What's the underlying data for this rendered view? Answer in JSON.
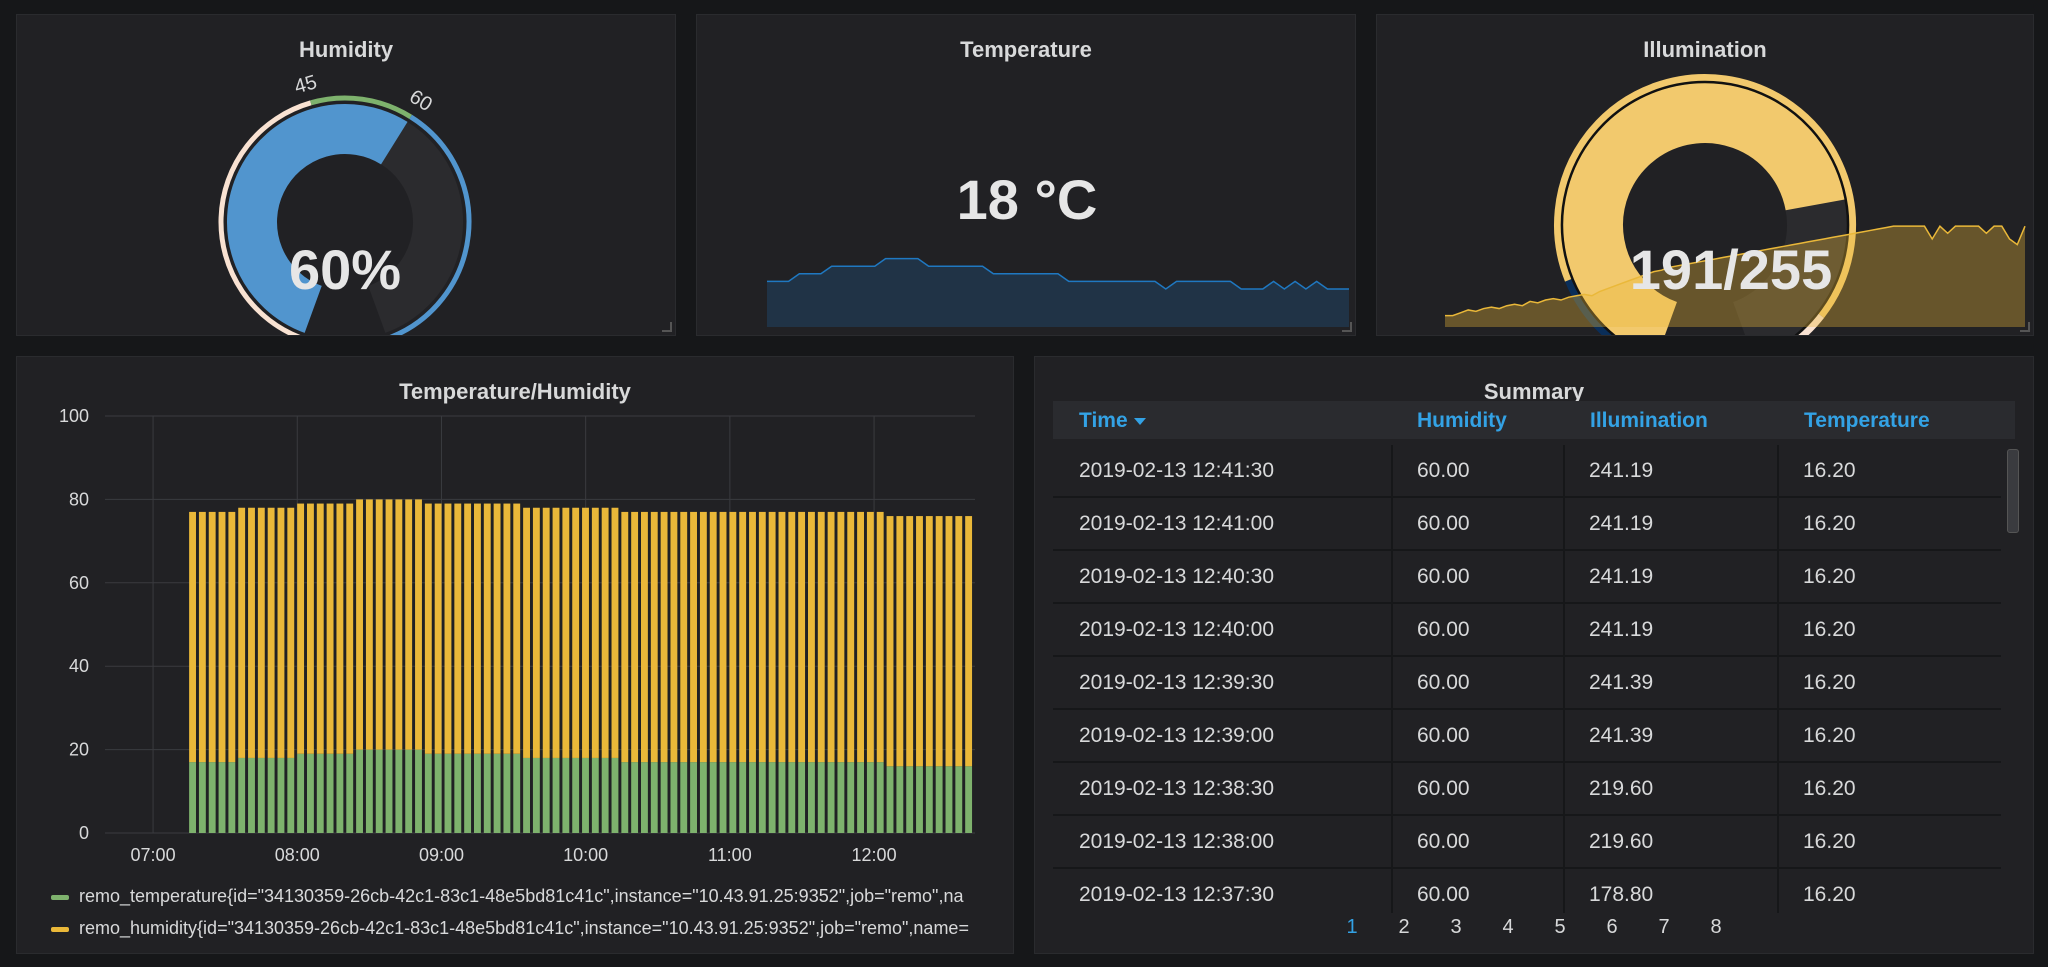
{
  "panels": {
    "humidity": {
      "title": "Humidity",
      "value": "60%",
      "fraction": 0.6,
      "thresholds": [
        "0",
        "45",
        "60",
        "100"
      ]
    },
    "temperature": {
      "title": "Temperature",
      "value": "18 °C"
    },
    "illumination": {
      "title": "Illumination",
      "value": "191/255",
      "fraction": 0.749
    },
    "temp_humidity": {
      "title": "Temperature/Humidity"
    },
    "summary": {
      "title": "Summary"
    }
  },
  "colors": {
    "humidity_blue": "#5195ce",
    "threshold_green": "#7eb26d",
    "threshold_light": "#f9e2d2",
    "illumination_yellow": "#f2c96d",
    "illumination_dark": "#0a2e59",
    "bar_yellow": "#eab839",
    "bar_green": "#7eb26d",
    "table_header": "#33a2e5"
  },
  "chart_data": {
    "type": "bar",
    "stacked": true,
    "title": "Temperature/Humidity",
    "x_ticks": [
      "07:00",
      "08:00",
      "09:00",
      "10:00",
      "11:00",
      "12:00"
    ],
    "y_ticks": [
      "0",
      "20",
      "40",
      "60",
      "80",
      "100"
    ],
    "ylim": [
      0,
      100
    ],
    "xlim_hours": [
      "06:40",
      "12:42"
    ],
    "grid": true,
    "legend_placement": "bottom",
    "series": [
      {
        "name": "remo_temperature{id=\"34130359-26cb-42c1-83c1-48e5bd81c41c\",instance=\"10.43.91.25:9352\",job=\"remo\",na",
        "color": "#7eb26d",
        "start_time": "07:15",
        "values": [
          17,
          17,
          17,
          17,
          17,
          18,
          18,
          18,
          18,
          18,
          18,
          19,
          19,
          19,
          19,
          19,
          19,
          20,
          20,
          20,
          20,
          20,
          20,
          20,
          19,
          19,
          19,
          19,
          19,
          19,
          19,
          19,
          19,
          19,
          18,
          18,
          18,
          18,
          18,
          18,
          18,
          18,
          18,
          18,
          17,
          17,
          17,
          17,
          17,
          17,
          17,
          17,
          17,
          17,
          17,
          17,
          17,
          17,
          17,
          17,
          17,
          17,
          17,
          17,
          17,
          17,
          17,
          17,
          17,
          17,
          17,
          16,
          16,
          16,
          16,
          16,
          16,
          16,
          16,
          16
        ]
      },
      {
        "name": "remo_humidity{id=\"34130359-26cb-42c1-83c1-48e5bd81c41c\",instance=\"10.43.91.25:9352\",job=\"remo\",name=",
        "color": "#eab839",
        "start_time": "07:15",
        "values": [
          60,
          60,
          60,
          60,
          60,
          60,
          60,
          60,
          60,
          60,
          60,
          60,
          60,
          60,
          60,
          60,
          60,
          60,
          60,
          60,
          60,
          60,
          60,
          60,
          60,
          60,
          60,
          60,
          60,
          60,
          60,
          60,
          60,
          60,
          60,
          60,
          60,
          60,
          60,
          60,
          60,
          60,
          60,
          60,
          60,
          60,
          60,
          60,
          60,
          60,
          60,
          60,
          60,
          60,
          60,
          60,
          60,
          60,
          60,
          60,
          60,
          60,
          60,
          60,
          60,
          60,
          60,
          60,
          60,
          60,
          60,
          60,
          60,
          60,
          60,
          60,
          60,
          60,
          60,
          60
        ]
      }
    ]
  },
  "sparklines": {
    "temperature": [
      16,
      16,
      16,
      17,
      17,
      17,
      18,
      18,
      18,
      18,
      18,
      19,
      19,
      19,
      19,
      18,
      18,
      18,
      18,
      18,
      18,
      17,
      17,
      17,
      17,
      17,
      17,
      17,
      16,
      16,
      16,
      16,
      16,
      16,
      16,
      16,
      16,
      15,
      16,
      16,
      16,
      16,
      16,
      16,
      15,
      15,
      15,
      16,
      15,
      16,
      15,
      16,
      15,
      15,
      15
    ],
    "illumination": [
      178,
      178,
      180,
      182,
      181,
      183,
      184,
      183,
      185,
      186,
      185,
      188,
      187,
      189,
      190,
      189,
      191,
      192,
      193,
      192,
      195,
      197,
      199,
      201,
      203,
      205,
      207,
      209,
      210,
      212,
      213,
      214,
      215,
      216,
      217,
      218,
      219,
      220,
      221,
      222,
      223,
      224,
      225,
      226,
      227,
      228,
      229,
      230,
      231,
      232,
      233,
      234,
      235,
      236,
      237,
      238,
      239,
      240,
      241,
      241,
      241,
      241,
      241,
      232,
      241,
      236,
      241,
      241,
      241,
      241,
      236,
      241,
      241,
      232,
      228,
      241
    ]
  },
  "summary_table": {
    "columns": [
      "Time",
      "Humidity",
      "Illumination",
      "Temperature"
    ],
    "rows": [
      [
        "2019-02-13 12:41:30",
        "60.00",
        "241.19",
        "16.20"
      ],
      [
        "2019-02-13 12:41:00",
        "60.00",
        "241.19",
        "16.20"
      ],
      [
        "2019-02-13 12:40:30",
        "60.00",
        "241.19",
        "16.20"
      ],
      [
        "2019-02-13 12:40:00",
        "60.00",
        "241.19",
        "16.20"
      ],
      [
        "2019-02-13 12:39:30",
        "60.00",
        "241.39",
        "16.20"
      ],
      [
        "2019-02-13 12:39:00",
        "60.00",
        "241.39",
        "16.20"
      ],
      [
        "2019-02-13 12:38:30",
        "60.00",
        "219.60",
        "16.20"
      ],
      [
        "2019-02-13 12:38:00",
        "60.00",
        "219.60",
        "16.20"
      ],
      [
        "2019-02-13 12:37:30",
        "60.00",
        "178.80",
        "16.20"
      ]
    ],
    "pages": [
      "1",
      "2",
      "3",
      "4",
      "5",
      "6",
      "7",
      "8"
    ],
    "active_page": "1"
  }
}
